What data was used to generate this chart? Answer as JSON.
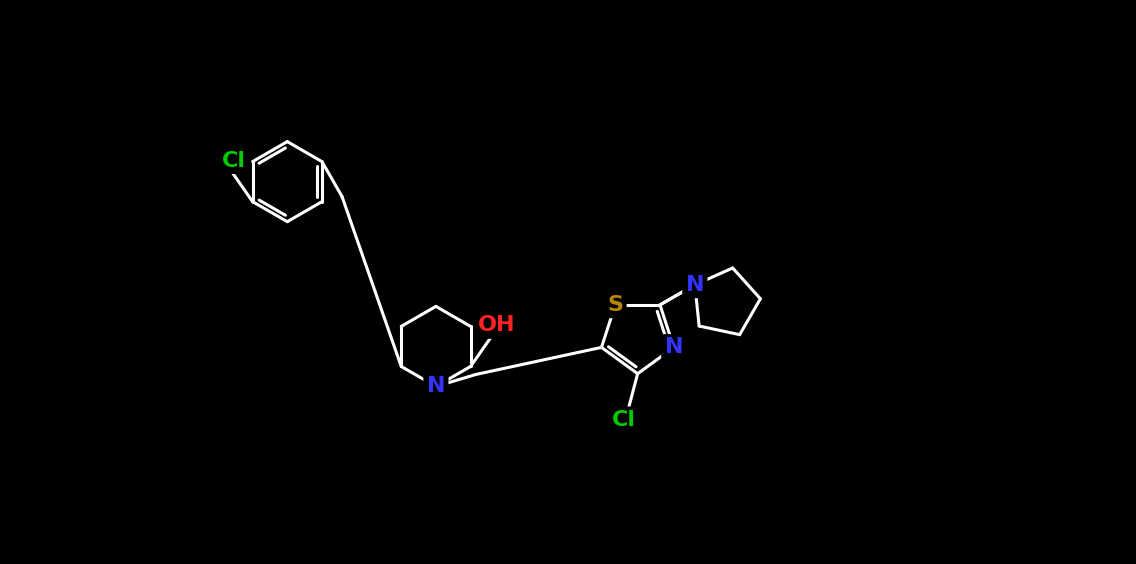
{
  "background_color": "#000000",
  "bond_color": "#ffffff",
  "bond_lw": 2.2,
  "atom_colors": {
    "C": "#ffffff",
    "N": "#3333ff",
    "O": "#ff2222",
    "S": "#b8860b",
    "Cl": "#00cc00"
  },
  "figsize": [
    11.36,
    5.64
  ],
  "dpi": 100
}
